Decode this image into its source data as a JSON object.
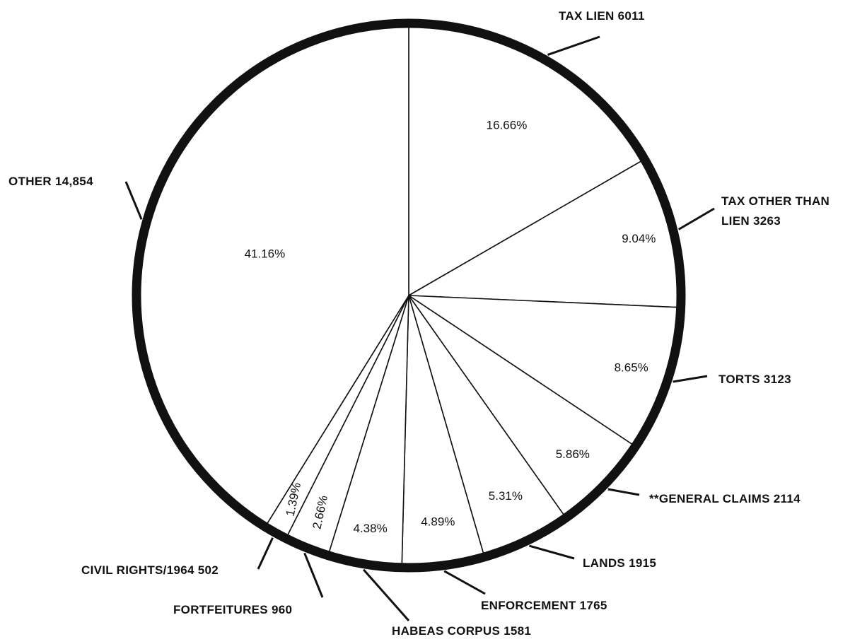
{
  "chart_data": {
    "type": "pie",
    "start": "top",
    "direction": "clockwise",
    "slices": [
      {
        "label": "TAX LIEN 6011",
        "value": 6011,
        "percent_label": "16.66%"
      },
      {
        "label": "TAX OTHER THAN LIEN 3263",
        "label_lines": [
          "TAX OTHER THAN",
          "LIEN  3263"
        ],
        "value": 3263,
        "percent_label": "9.04%"
      },
      {
        "label": "TORTS 3123",
        "value": 3123,
        "percent_label": "8.65%"
      },
      {
        "label": "**GENERAL CLAIMS 2114",
        "value": 2114,
        "percent_label": "5.86%"
      },
      {
        "label": "LANDS 1915",
        "value": 1915,
        "percent_label": "5.31%"
      },
      {
        "label": "ENFORCEMENT 1765",
        "value": 1765,
        "percent_label": "4.89%"
      },
      {
        "label": "HABEAS CORPUS 1581",
        "value": 1581,
        "percent_label": "4.38%"
      },
      {
        "label": "FORTFEITURES 960",
        "value": 960,
        "percent_label": "2.66%"
      },
      {
        "label": "CIVIL RIGHTS/1964 502",
        "value": 502,
        "percent_label": "1.39%"
      },
      {
        "label": "OTHER 14,854",
        "value": 14854,
        "percent_label": "41.16%"
      }
    ]
  }
}
